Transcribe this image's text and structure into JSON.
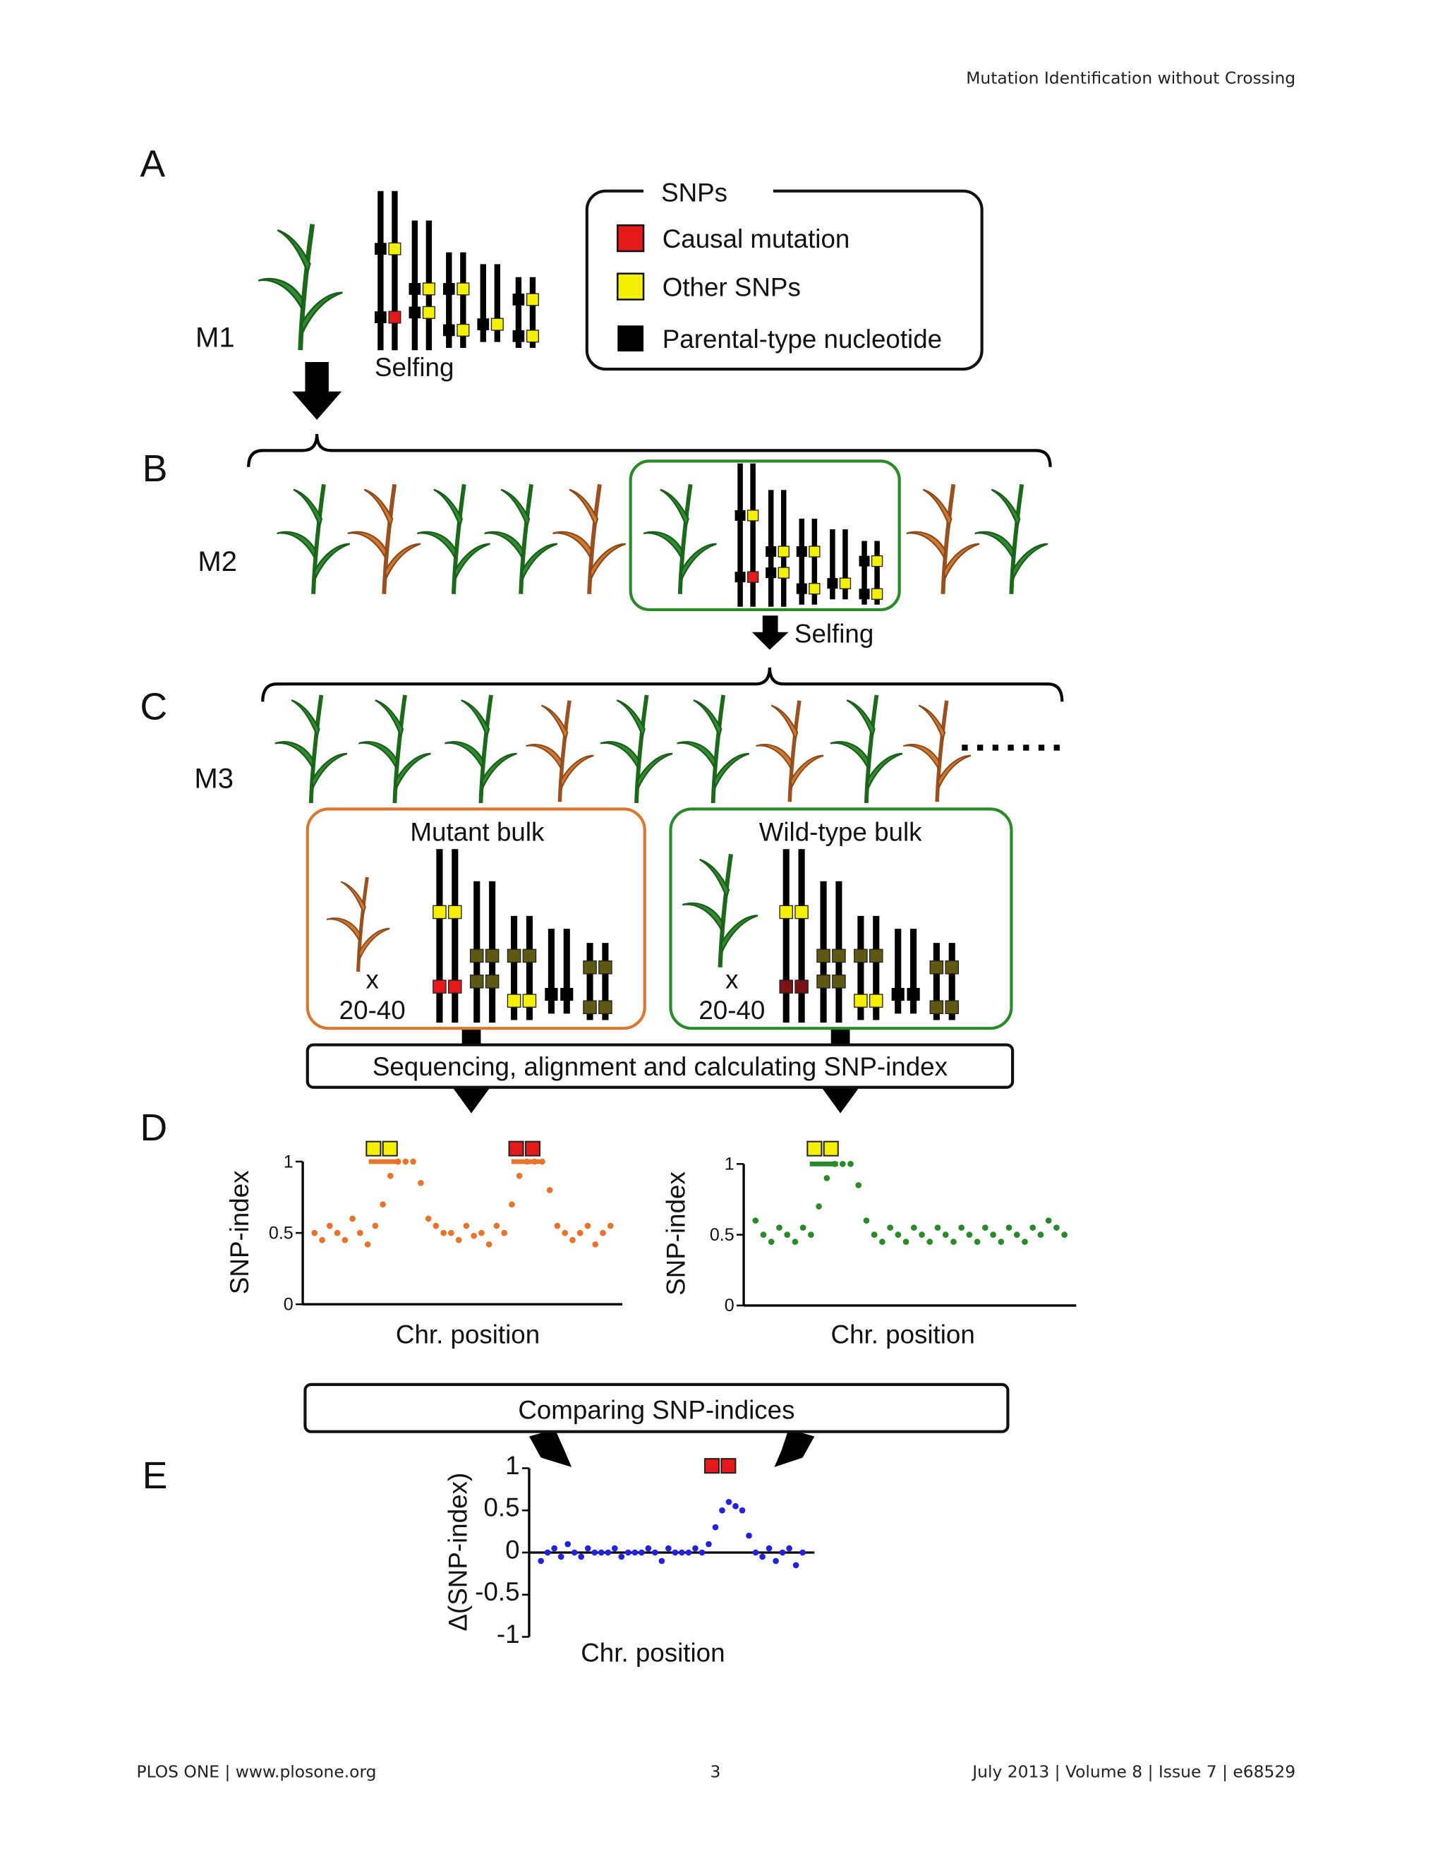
{
  "header": "Mutation Identification without Crossing",
  "panels": [
    "A",
    "B",
    "C",
    "D",
    "E"
  ],
  "generations": [
    "M1",
    "M2",
    "M3"
  ],
  "legend": {
    "title": "SNPs",
    "items": [
      "Causal mutation",
      "Other SNPs",
      "Parental-type nucleotide"
    ]
  },
  "selfing": [
    "Selfing",
    "Selfing"
  ],
  "bulks": [
    {
      "title": "Mutant bulk",
      "multiplier": "x",
      "count": "20-40"
    },
    {
      "title": "Wild-type bulk",
      "multiplier": "x",
      "count": "20-40"
    }
  ],
  "steps": [
    "Sequencing, alignment and calculating SNP-index",
    "Comparing SNP-indices"
  ],
  "chart_data": [
    {
      "type": "scatter",
      "y_label": "SNP-index",
      "x_label": "Chr. position",
      "color": "#e8742a",
      "ylim": [
        0,
        1
      ],
      "yticks": [
        0,
        0.5,
        1
      ],
      "values": [
        0.5,
        0.45,
        0.55,
        0.5,
        0.45,
        0.6,
        0.5,
        0.42,
        0.55,
        0.7,
        0.9,
        1,
        1,
        1,
        0.85,
        0.6,
        0.55,
        0.5,
        0.5,
        0.45,
        0.55,
        0.48,
        0.5,
        0.42,
        0.55,
        0.5,
        0.7,
        0.9,
        1,
        1,
        1,
        0.8,
        0.55,
        0.5,
        0.45,
        0.5,
        0.55,
        0.42,
        0.5,
        0.55
      ]
    },
    {
      "type": "scatter",
      "y_label": "SNP-index",
      "x_label": "Chr. position",
      "color": "#2a8a2a",
      "ylim": [
        0,
        1
      ],
      "yticks": [
        0,
        0.5,
        1
      ],
      "values": [
        0.6,
        0.5,
        0.45,
        0.55,
        0.5,
        0.45,
        0.55,
        0.5,
        0.7,
        0.9,
        1,
        1,
        1,
        0.85,
        0.6,
        0.5,
        0.45,
        0.55,
        0.5,
        0.45,
        0.55,
        0.5,
        0.45,
        0.55,
        0.5,
        0.45,
        0.55,
        0.5,
        0.45,
        0.55,
        0.5,
        0.45,
        0.55,
        0.5,
        0.45,
        0.55,
        0.5,
        0.6,
        0.55,
        0.5
      ]
    },
    {
      "type": "scatter",
      "y_label": "Δ(SNP-index)",
      "x_label": "Chr. position",
      "color": "#2222dd",
      "ylim": [
        -1,
        1
      ],
      "yticks": [
        -1,
        -0.5,
        0,
        0.5,
        1
      ],
      "values": [
        -0.1,
        0,
        0.05,
        -0.05,
        0.1,
        0,
        -0.05,
        0.05,
        0,
        0,
        0,
        0.05,
        -0.05,
        0,
        0,
        0,
        0.05,
        0,
        -0.1,
        0.05,
        0,
        0,
        0,
        0.05,
        0,
        0.1,
        0.3,
        0.5,
        0.6,
        0.55,
        0.5,
        0.2,
        0,
        -0.05,
        0.05,
        -0.1,
        0,
        0.05,
        -0.15,
        0
      ]
    }
  ],
  "footer": {
    "left": "PLOS ONE | www.plosone.org",
    "page": "3",
    "right": "July 2013 | Volume 8 | Issue 7 | e68529"
  }
}
